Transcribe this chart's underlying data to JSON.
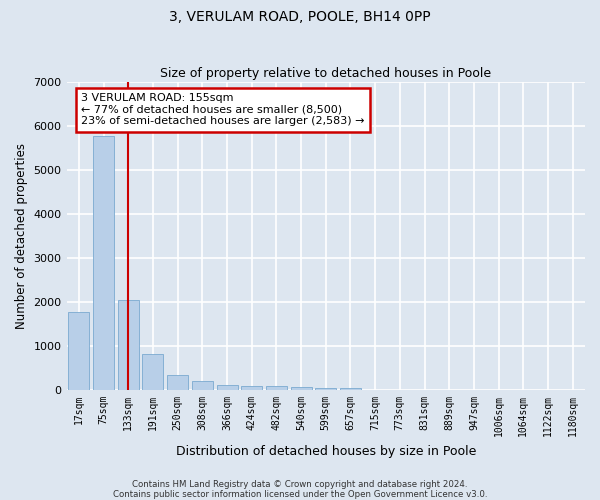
{
  "title": "3, VERULAM ROAD, POOLE, BH14 0PP",
  "subtitle": "Size of property relative to detached houses in Poole",
  "xlabel": "Distribution of detached houses by size in Poole",
  "ylabel": "Number of detached properties",
  "categories": [
    "17sqm",
    "75sqm",
    "133sqm",
    "191sqm",
    "250sqm",
    "308sqm",
    "366sqm",
    "424sqm",
    "482sqm",
    "540sqm",
    "599sqm",
    "657sqm",
    "715sqm",
    "773sqm",
    "831sqm",
    "889sqm",
    "947sqm",
    "1006sqm",
    "1064sqm",
    "1122sqm",
    "1180sqm"
  ],
  "values": [
    1780,
    5780,
    2060,
    820,
    350,
    215,
    115,
    95,
    90,
    65,
    50,
    40,
    0,
    0,
    0,
    0,
    0,
    0,
    0,
    0,
    0
  ],
  "bar_color": "#b8cfe8",
  "bar_edge_color": "#7aaad0",
  "highlight_bar_index": 2,
  "highlight_color": "#cc0000",
  "annotation_text": "3 VERULAM ROAD: 155sqm\n← 77% of detached houses are smaller (8,500)\n23% of semi-detached houses are larger (2,583) →",
  "annotation_box_color": "#ffffff",
  "annotation_box_edge": "#cc0000",
  "ylim": [
    0,
    7000
  ],
  "yticks": [
    0,
    1000,
    2000,
    3000,
    4000,
    5000,
    6000,
    7000
  ],
  "background_color": "#dde6f0",
  "plot_bg_color": "#dde6f0",
  "grid_color": "#ffffff",
  "footer_line1": "Contains HM Land Registry data © Crown copyright and database right 2024.",
  "footer_line2": "Contains public sector information licensed under the Open Government Licence v3.0."
}
